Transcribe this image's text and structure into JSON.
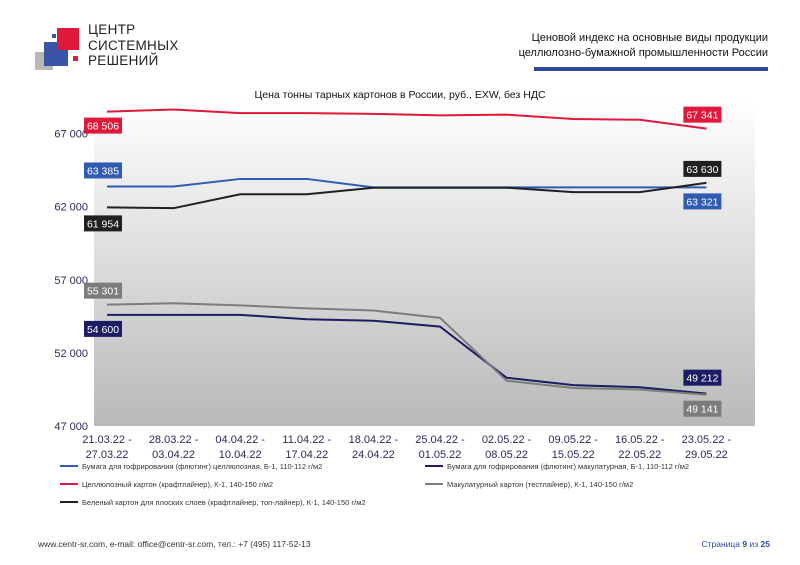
{
  "brand": {
    "line1": "ЦЕНТР",
    "line2": "СИСТЕМНЫХ",
    "line3": "РЕШЕНИЙ"
  },
  "header": {
    "line1": "Ценовой индекс на основные виды продукции",
    "line2": "целлюлозно-бумажной промышленности России"
  },
  "colors": {
    "accent_blue": "#2f4a9c",
    "accent_red": "#e0183c"
  },
  "chart_data": {
    "type": "line",
    "title": "Цена тонны тарных картонов в России, руб., EXW, без НДС",
    "categories": [
      [
        "21.03.22 -",
        "27.03.22"
      ],
      [
        "28.03.22 -",
        "03.04.22"
      ],
      [
        "04.04.22 -",
        "10.04.22"
      ],
      [
        "11.04.22 -",
        "17.04.22"
      ],
      [
        "18.04.22 -",
        "24.04.22"
      ],
      [
        "25.04.22 -",
        "01.05.22"
      ],
      [
        "02.05.22 -",
        "08.05.22"
      ],
      [
        "09.05.22 -",
        "15.05.22"
      ],
      [
        "16.05.22 -",
        "22.05.22"
      ],
      [
        "23.05.22 -",
        "29.05.22"
      ]
    ],
    "ylim": [
      47000,
      69300
    ],
    "yticks": [
      47000,
      52000,
      57000,
      62000,
      67000
    ],
    "ytick_labels": [
      "47 000",
      "52 000",
      "57 000",
      "62 000",
      "67 000"
    ],
    "grid": false,
    "legend_position": "bottom",
    "series": [
      {
        "name": "Бумага для гофрирования (флютинг) целлюлозная, Б-1, 110-112 г/м2",
        "color": "#2f5cb0",
        "values": [
          63385,
          63385,
          63900,
          63900,
          63321,
          63321,
          63321,
          63321,
          63321,
          63321
        ],
        "labels": [
          {
            "index": 0,
            "text": "63 385",
            "side": "left",
            "dy": -16
          },
          {
            "index": 9,
            "text": "63 321",
            "side": "right",
            "dy": 14
          }
        ]
      },
      {
        "name": "Бумага для гофрирования (флютинг) макулатурная, Б-1, 110-112 г/м2",
        "color": "#1c1c64",
        "values": [
          54600,
          54600,
          54600,
          54300,
          54200,
          53800,
          50300,
          49800,
          49650,
          49212
        ],
        "labels": [
          {
            "index": 0,
            "text": "54 600",
            "side": "left",
            "dy": 14
          },
          {
            "index": 9,
            "text": "49 212",
            "side": "right",
            "dy": -16
          }
        ]
      },
      {
        "name": "Целлюлозный картон (крафтлайнер), К-1, 140-150 г/м2",
        "color": "#e0183c",
        "values": [
          68506,
          68650,
          68400,
          68400,
          68350,
          68250,
          68300,
          68000,
          67950,
          67341
        ],
        "labels": [
          {
            "index": 0,
            "text": "68 506",
            "side": "left",
            "dy": 14
          },
          {
            "index": 9,
            "text": "67 341",
            "side": "right",
            "dy": -14
          }
        ]
      },
      {
        "name": "Макулатурный картон (тестлайнер), К-1, 140-150 г/м2",
        "color": "#7c7c7c",
        "values": [
          55301,
          55400,
          55250,
          55050,
          54900,
          54400,
          50100,
          49600,
          49500,
          49141
        ],
        "labels": [
          {
            "index": 0,
            "text": "55 301",
            "side": "left",
            "dy": -14
          },
          {
            "index": 9,
            "text": "49 141",
            "side": "right",
            "dy": 14
          }
        ]
      },
      {
        "name": "Беленый картон для плоских слоев (крафтлайнер, топ-лайнер), К-1, 140-150 г/м2",
        "color": "#202020",
        "values": [
          61954,
          61900,
          62850,
          62850,
          63300,
          63300,
          63300,
          63000,
          63000,
          63630
        ],
        "labels": [
          {
            "index": 0,
            "text": "61 954",
            "side": "left",
            "dy": 16
          },
          {
            "index": 9,
            "text": "63 630",
            "side": "right",
            "dy": -14
          }
        ]
      }
    ]
  },
  "footer": {
    "contacts": "www.centr-sr.com, e-mail: office@centr-sr.com, тел.: +7 (495) 117-52-13",
    "page_prefix": "Страница",
    "page_current": "9",
    "page_sep": "из",
    "page_total": "25"
  }
}
